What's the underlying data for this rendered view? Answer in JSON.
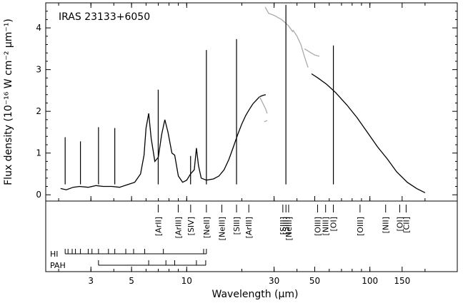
{
  "chart_data": {
    "type": "line",
    "title": "IRAS 23133+6050",
    "xlabel": "Wavelength (μm)",
    "ylabel": "Flux density (10⁻¹⁶ W cm⁻² μm⁻¹)",
    "xscale": "log",
    "xlim": [
      1.7,
      300
    ],
    "ylim": [
      -0.15,
      4.6
    ],
    "xticks": [
      {
        "value": 3,
        "label": "3"
      },
      {
        "value": 5,
        "label": "5"
      },
      {
        "value": 10,
        "label": "10"
      },
      {
        "value": 30,
        "label": "30"
      },
      {
        "value": 50,
        "label": "50"
      },
      {
        "value": 100,
        "label": "100"
      },
      {
        "value": 150,
        "label": "150"
      }
    ],
    "yticks": [
      {
        "value": 0,
        "label": "0"
      },
      {
        "value": 1,
        "label": "1"
      },
      {
        "value": 2,
        "label": "2"
      },
      {
        "value": 3,
        "label": "3"
      },
      {
        "value": 4,
        "label": "4"
      }
    ],
    "series": [
      {
        "color": "#000000",
        "values": [
          [
            2.05,
            0.15
          ],
          [
            2.2,
            0.12
          ],
          [
            2.4,
            0.18
          ],
          [
            2.6,
            0.2
          ],
          [
            2.9,
            0.18
          ],
          [
            3.2,
            0.22
          ],
          [
            3.5,
            0.2
          ],
          [
            3.9,
            0.2
          ],
          [
            4.3,
            0.18
          ],
          [
            4.8,
            0.25
          ],
          [
            5.2,
            0.3
          ],
          [
            5.6,
            0.5
          ],
          [
            5.85,
            0.95
          ],
          [
            6.0,
            1.6
          ],
          [
            6.2,
            1.95
          ],
          [
            6.4,
            1.35
          ],
          [
            6.7,
            0.8
          ],
          [
            7.0,
            0.9
          ],
          [
            7.3,
            1.45
          ],
          [
            7.6,
            1.8
          ],
          [
            7.9,
            1.5
          ],
          [
            8.3,
            1.0
          ],
          [
            8.6,
            0.95
          ],
          [
            9.0,
            0.45
          ],
          [
            9.5,
            0.3
          ],
          [
            10.0,
            0.35
          ],
          [
            10.5,
            0.5
          ],
          [
            11.0,
            0.6
          ],
          [
            11.3,
            1.12
          ],
          [
            11.6,
            0.7
          ],
          [
            12.0,
            0.4
          ],
          [
            12.8,
            0.35
          ],
          [
            14.0,
            0.38
          ],
          [
            15.0,
            0.45
          ],
          [
            16.0,
            0.6
          ],
          [
            17.0,
            0.85
          ],
          [
            18.0,
            1.15
          ],
          [
            19.0,
            1.45
          ],
          [
            20.0,
            1.7
          ],
          [
            21.0,
            1.9
          ],
          [
            22.0,
            2.05
          ],
          [
            23.0,
            2.18
          ],
          [
            24.0,
            2.27
          ],
          [
            25.0,
            2.35
          ],
          [
            26.0,
            2.38
          ],
          [
            27.0,
            2.4
          ]
        ]
      },
      {
        "color": "#000000",
        "values": [
          [
            48,
            2.9
          ],
          [
            52,
            2.8
          ],
          [
            58,
            2.65
          ],
          [
            65,
            2.45
          ],
          [
            75,
            2.15
          ],
          [
            85,
            1.85
          ],
          [
            95,
            1.55
          ],
          [
            110,
            1.15
          ],
          [
            125,
            0.85
          ],
          [
            140,
            0.55
          ],
          [
            160,
            0.3
          ],
          [
            180,
            0.15
          ],
          [
            200,
            0.05
          ]
        ]
      },
      {
        "color": "#aaaaaa",
        "values": [
          [
            25,
            2.35
          ],
          [
            26,
            2.2
          ],
          [
            27,
            2.05
          ],
          [
            27.5,
            1.95
          ]
        ]
      },
      {
        "color": "#aaaaaa",
        "values": [
          [
            26.5,
            1.75
          ],
          [
            27.5,
            1.78
          ]
        ]
      },
      {
        "color": "#aaaaaa",
        "values": [
          [
            26.8,
            4.5
          ],
          [
            28,
            4.35
          ],
          [
            30,
            4.3
          ],
          [
            33,
            4.2
          ],
          [
            36,
            4.05
          ],
          [
            38,
            3.9
          ]
        ]
      },
      {
        "color": "#aaaaaa",
        "values": [
          [
            38,
            3.95
          ],
          [
            40,
            3.8
          ],
          [
            42,
            3.6
          ],
          [
            44,
            3.3
          ],
          [
            46,
            3.05
          ]
        ]
      },
      {
        "color": "#aaaaaa",
        "values": [
          [
            44,
            3.5
          ],
          [
            47,
            3.42
          ],
          [
            50,
            3.35
          ],
          [
            53,
            3.32
          ]
        ]
      }
    ],
    "emission_peaks": [
      {
        "x": 2.17,
        "y": 1.38
      },
      {
        "x": 2.63,
        "y": 1.28
      },
      {
        "x": 3.3,
        "y": 1.62
      },
      {
        "x": 4.05,
        "y": 1.6
      },
      {
        "x": 6.99,
        "y": 2.52
      },
      {
        "x": 10.5,
        "y": 0.93
      },
      {
        "x": 12.81,
        "y": 3.47
      },
      {
        "x": 18.71,
        "y": 3.73
      },
      {
        "x": 34.8,
        "y": 4.55
      },
      {
        "x": 63.2,
        "y": 3.58
      }
    ],
    "line_ids": [
      {
        "x": 6.99,
        "label": "[ArII]"
      },
      {
        "x": 8.99,
        "label": "[ArIII]"
      },
      {
        "x": 10.51,
        "label": "[SIV]"
      },
      {
        "x": 12.81,
        "label": "[NeII]"
      },
      {
        "x": 15.55,
        "label": "[NeIII]"
      },
      {
        "x": 18.71,
        "label": "[SIII]"
      },
      {
        "x": 21.83,
        "label": "[ArIII]"
      },
      {
        "x": 33.48,
        "label": "[SIII]"
      },
      {
        "x": 34.82,
        "label": "[SiII]"
      },
      {
        "x": 36.01,
        "label": "[NeIII]"
      },
      {
        "x": 51.81,
        "label": "[OIII]"
      },
      {
        "x": 57.32,
        "label": "[NIII]"
      },
      {
        "x": 63.18,
        "label": "[OI]"
      },
      {
        "x": 88.36,
        "label": "[OIII]"
      },
      {
        "x": 121.9,
        "label": "[NII]"
      },
      {
        "x": 145.5,
        "label": "[OI]"
      },
      {
        "x": 157.7,
        "label": "[CII]"
      }
    ],
    "hi_label": "HI",
    "hi_lines": [
      2.17,
      2.25,
      2.37,
      2.47,
      2.63,
      2.9,
      3.04,
      3.3,
      3.74,
      4.05,
      4.65,
      5.13,
      5.9,
      7.46,
      12.37,
      12.81
    ],
    "pah_label": "PAH",
    "pah_bands": [
      3.3,
      6.2,
      7.7,
      8.6,
      11.3,
      12.7
    ]
  }
}
